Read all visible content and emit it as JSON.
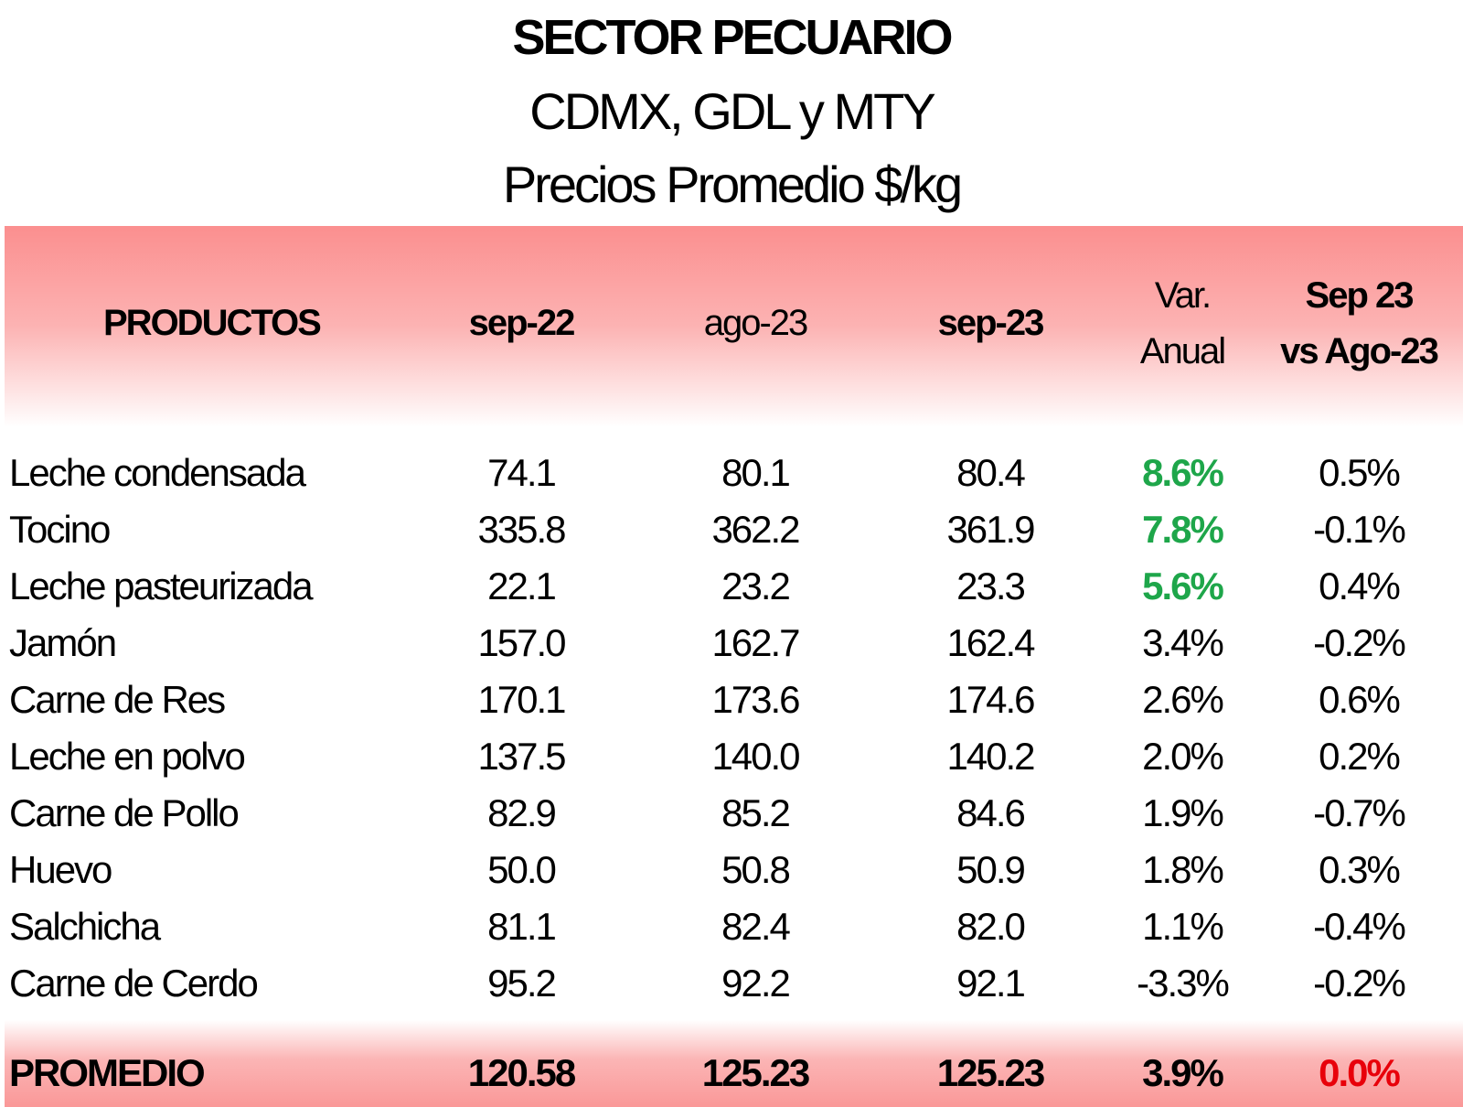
{
  "title": {
    "line1": "SECTOR PECUARIO",
    "line2": "CDMX, GDL y MTY",
    "line3": "Precios Promedio $/kg"
  },
  "headers": {
    "productos": "PRODUCTOS",
    "sep22": "sep-22",
    "ago23": "ago-23",
    "sep23": "sep-23",
    "var_anual_1": "Var.",
    "var_anual_2": "Anual",
    "vs_1": "Sep 23",
    "vs_2": "vs Ago-23"
  },
  "rows": [
    {
      "producto": "Leche condensada",
      "sep22": "74.1",
      "ago23": "80.1",
      "sep23": "80.4",
      "var_anual": "8.6%",
      "vs_ago": "0.5%"
    },
    {
      "producto": "Tocino",
      "sep22": "335.8",
      "ago23": "362.2",
      "sep23": "361.9",
      "var_anual": "7.8%",
      "vs_ago": "-0.1%"
    },
    {
      "producto": "Leche pasteurizada",
      "sep22": "22.1",
      "ago23": "23.2",
      "sep23": "23.3",
      "var_anual": "5.6%",
      "vs_ago": "0.4%"
    },
    {
      "producto": "Jamón",
      "sep22": "157.0",
      "ago23": "162.7",
      "sep23": "162.4",
      "var_anual": "3.4%",
      "vs_ago": "-0.2%"
    },
    {
      "producto": "Carne de Res",
      "sep22": "170.1",
      "ago23": "173.6",
      "sep23": "174.6",
      "var_anual": "2.6%",
      "vs_ago": "0.6%"
    },
    {
      "producto": "Leche en polvo",
      "sep22": "137.5",
      "ago23": "140.0",
      "sep23": "140.2",
      "var_anual": "2.0%",
      "vs_ago": "0.2%"
    },
    {
      "producto": "Carne de Pollo",
      "sep22": "82.9",
      "ago23": "85.2",
      "sep23": "84.6",
      "var_anual": "1.9%",
      "vs_ago": "-0.7%"
    },
    {
      "producto": "Huevo",
      "sep22": "50.0",
      "ago23": "50.8",
      "sep23": "50.9",
      "var_anual": "1.8%",
      "vs_ago": "0.3%"
    },
    {
      "producto": "Salchicha",
      "sep22": "81.1",
      "ago23": "82.4",
      "sep23": "82.0",
      "var_anual": "1.1%",
      "vs_ago": "-0.4%"
    },
    {
      "producto": "Carne de Cerdo",
      "sep22": "95.2",
      "ago23": "92.2",
      "sep23": "92.1",
      "var_anual": "-3.3%",
      "vs_ago": "-0.2%"
    }
  ],
  "promedio": {
    "label": "PROMEDIO",
    "sep22": "120.58",
    "ago23": "125.23",
    "sep23": "125.23",
    "var_anual": "3.9%",
    "vs_ago": "0.0%"
  },
  "colors": {
    "highlight_green": "#1ea64a",
    "highlight_red": "#e8000a",
    "band_pink": "#fb8f8f"
  }
}
